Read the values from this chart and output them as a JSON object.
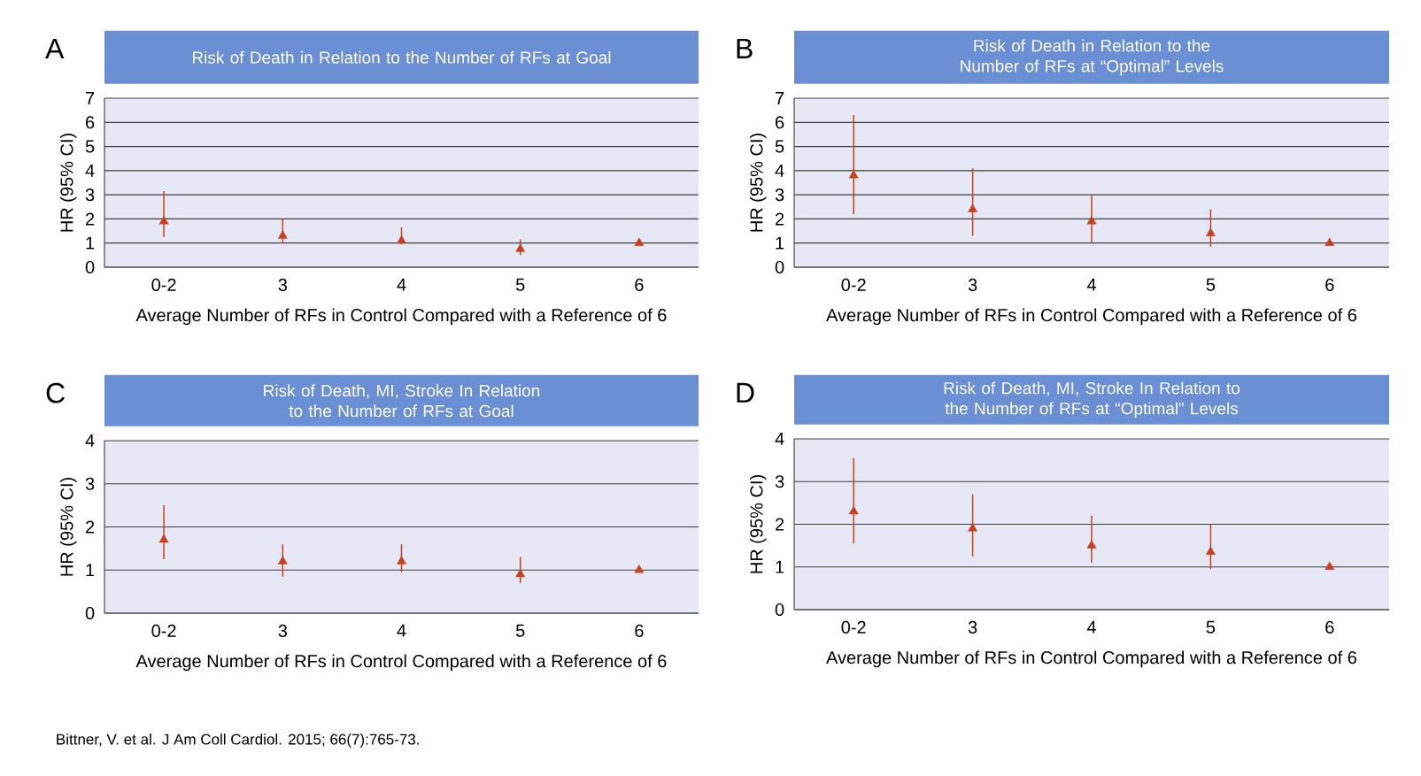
{
  "chart_data": [
    {
      "type": "scatter",
      "title": "Risk of Death in Relation to the Number of RFs at Goal",
      "xlabel": "Average Number of RFs in Control Compared with a Reference of 6",
      "ylabel": "HR (95% CI)",
      "categories": [
        "0-2",
        "3",
        "4",
        "5",
        "6"
      ],
      "series": [
        {
          "color": "#c8401e",
          "values": [
            1.9,
            1.3,
            1.1,
            0.75,
            1.0
          ],
          "errors": [
            [
              1.25,
              3.15
            ],
            [
              1.0,
              2.0
            ],
            [
              0.95,
              1.65
            ],
            [
              0.5,
              1.15
            ],
            null
          ]
        }
      ],
      "ylim": [
        0,
        7
      ],
      "yticks": [
        0,
        1,
        2,
        3,
        4,
        5,
        6,
        7
      ],
      "grid": "y",
      "marker": "triangle",
      "annotations": [
        "A"
      ]
    },
    {
      "type": "scatter",
      "title": "Risk of Death in Relation to the Number of RFs at “Optimal” Levels",
      "xlabel": "Average Number of RFs in Control Compared with a Reference of 6",
      "ylabel": "HR (95% CI)",
      "categories": [
        "0-2",
        "3",
        "4",
        "5",
        "6"
      ],
      "series": [
        {
          "color": "#c8401e",
          "values": [
            3.8,
            2.4,
            1.9,
            1.4,
            1.0
          ],
          "errors": [
            [
              2.2,
              6.3
            ],
            [
              1.3,
              4.1
            ],
            [
              1.0,
              3.0
            ],
            [
              0.85,
              2.4
            ],
            null
          ]
        }
      ],
      "ylim": [
        0,
        7
      ],
      "yticks": [
        0,
        1,
        2,
        3,
        4,
        5,
        6,
        7
      ],
      "grid": "y",
      "marker": "triangle",
      "annotations": [
        "B"
      ]
    },
    {
      "type": "scatter",
      "title": "Risk of Death, MI, Stroke In Relation to the Number of RFs at Goal",
      "xlabel": "Average Number of RFs in Control Compared with a Reference of 6",
      "ylabel": "HR (95% CI)",
      "categories": [
        "0-2",
        "3",
        "4",
        "5",
        "6"
      ],
      "series": [
        {
          "color": "#c8401e",
          "values": [
            1.7,
            1.2,
            1.2,
            0.9,
            1.0
          ],
          "errors": [
            [
              1.25,
              2.5
            ],
            [
              0.85,
              1.6
            ],
            [
              0.95,
              1.6
            ],
            [
              0.7,
              1.3
            ],
            null
          ]
        }
      ],
      "ylim": [
        0,
        4
      ],
      "yticks": [
        0,
        1,
        2,
        3,
        4
      ],
      "grid": "y",
      "marker": "triangle",
      "annotations": [
        "C",
        "Bittner, V. et al. J Am Coll Cardiol. 2015; 66(7):765-73."
      ]
    },
    {
      "type": "scatter",
      "title": "Risk of Death, MI, Stroke In Relation to the Number of RFs at “Optimal” Levels",
      "xlabel": "Average Number of RFs in Control Compared with a Reference of 6",
      "ylabel": "HR (95% CI)",
      "categories": [
        "0-2",
        "3",
        "4",
        "5",
        "6"
      ],
      "series": [
        {
          "color": "#c8401e",
          "values": [
            2.3,
            1.9,
            1.5,
            1.35,
            1.0
          ],
          "errors": [
            [
              1.55,
              3.55
            ],
            [
              1.25,
              2.7
            ],
            [
              1.1,
              2.2
            ],
            [
              0.95,
              2.0
            ],
            null
          ]
        }
      ],
      "ylim": [
        0,
        4
      ],
      "yticks": [
        0,
        1,
        2,
        3,
        4
      ],
      "grid": "y",
      "marker": "triangle",
      "annotations": [
        "D"
      ]
    }
  ]
}
